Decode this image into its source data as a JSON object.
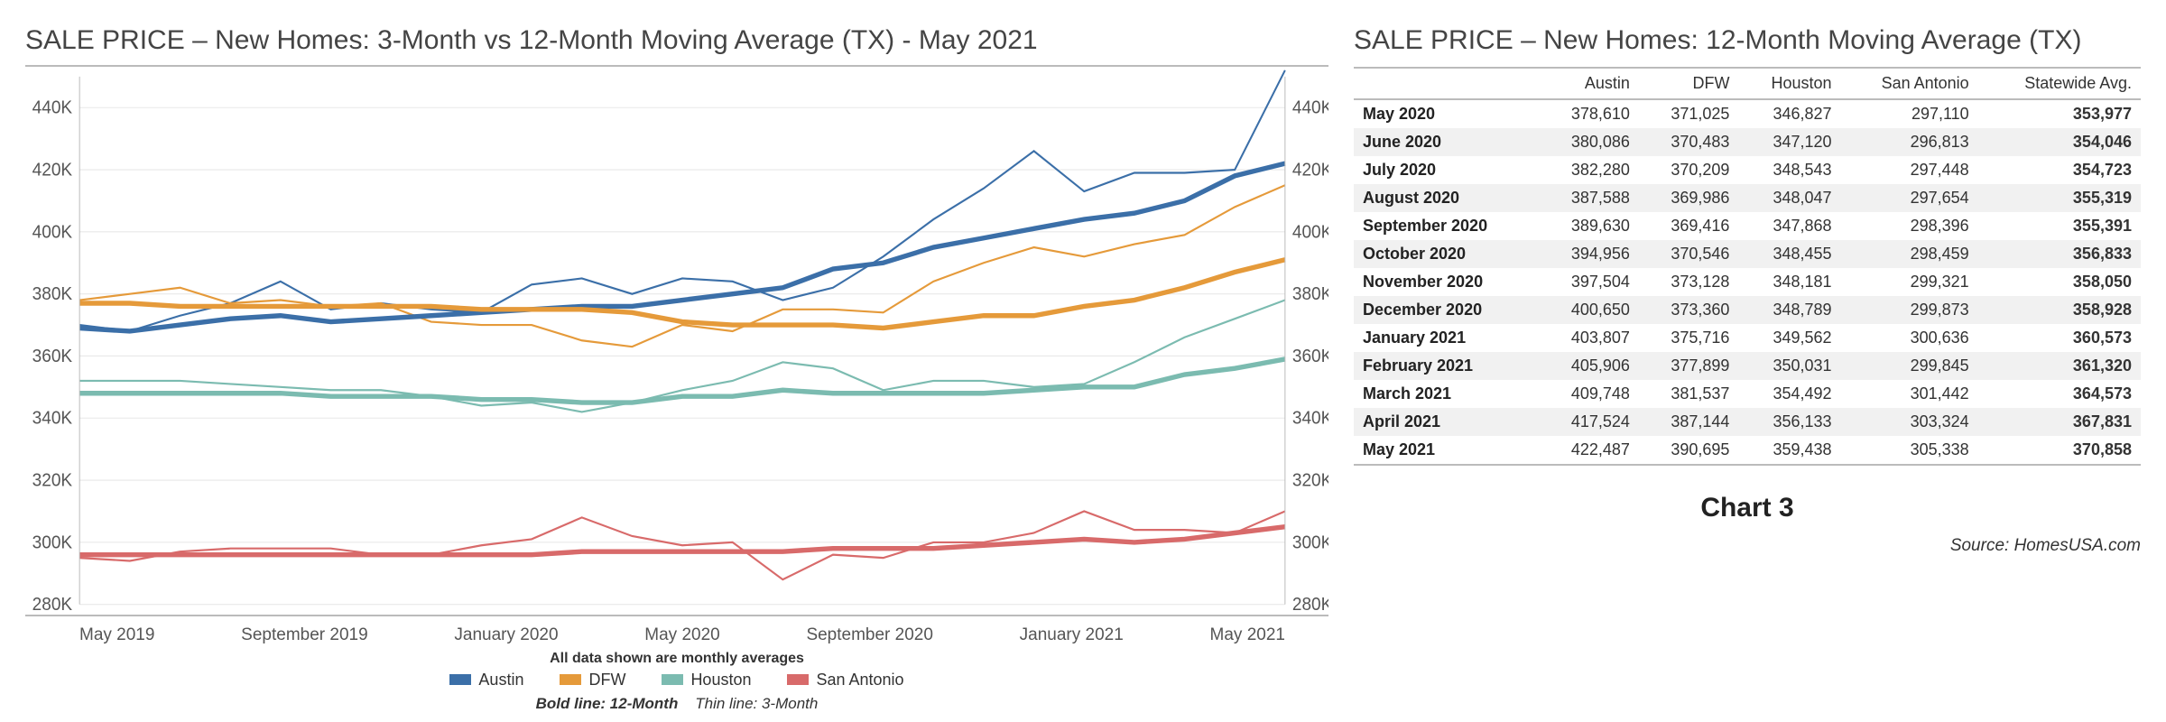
{
  "left_title_main": "SALE PRICE – New Homes: 3-Month vs 12-Month Moving Average (TX)",
  "left_title_suffix": " - May 2021",
  "right_title": "SALE PRICE – New Homes: 12-Month Moving Average (TX)",
  "chart_label": "Chart 3",
  "source": "Source: HomesUSA.com",
  "legend": {
    "caption": "All data shown are monthly averages",
    "items": [
      {
        "label": "Austin",
        "color": "#3b6fa8"
      },
      {
        "label": "DFW",
        "color": "#e59a3a"
      },
      {
        "label": "Houston",
        "color": "#7bbbb0"
      },
      {
        "label": "San Antonio",
        "color": "#d86a6a"
      }
    ],
    "note_bold": "Bold line: 12-Month",
    "note_thin": "Thin line: 3-Month"
  },
  "chart": {
    "type": "line",
    "background_color": "#ffffff",
    "grid_color": "#e8e8e8",
    "axis_label_color": "#555555",
    "axis_label_fontsize": 19,
    "ylim": [
      280,
      450
    ],
    "y_ticks": [
      280,
      300,
      320,
      340,
      360,
      380,
      400,
      420,
      440
    ],
    "y_tick_suffix": "K",
    "x_labels": [
      "May 2019",
      "September 2019",
      "January 2020",
      "May 2020",
      "September 2020",
      "January 2021",
      "May 2021"
    ],
    "x_count": 25,
    "series_colors": {
      "Austin": "#3b6fa8",
      "DFW": "#e59a3a",
      "Houston": "#7bbbb0",
      "San Antonio": "#d86a6a"
    },
    "bold_line_width": 5,
    "thin_line_width": 2,
    "series_12mo": {
      "Austin": [
        369,
        368,
        370,
        372,
        373,
        371,
        372,
        373,
        374,
        375,
        376,
        376,
        378,
        380,
        382,
        388,
        390,
        395,
        398,
        401,
        404,
        406,
        410,
        418,
        422
      ],
      "DFW": [
        377,
        377,
        376,
        376,
        376,
        376,
        376,
        376,
        375,
        375,
        375,
        374,
        371,
        370,
        370,
        370,
        369,
        371,
        373,
        373,
        376,
        378,
        382,
        387,
        391
      ],
      "Houston": [
        348,
        348,
        348,
        348,
        348,
        347,
        347,
        347,
        346,
        346,
        345,
        345,
        347,
        347,
        349,
        348,
        348,
        348,
        348,
        349,
        350,
        350,
        354,
        356,
        359
      ],
      "San Antonio": [
        296,
        296,
        296,
        296,
        296,
        296,
        296,
        296,
        296,
        296,
        297,
        297,
        297,
        297,
        297,
        298,
        298,
        298,
        299,
        300,
        301,
        300,
        301,
        303,
        305
      ]
    },
    "series_3mo": {
      "Austin": [
        370,
        368,
        373,
        377,
        384,
        375,
        377,
        375,
        374,
        383,
        385,
        380,
        385,
        384,
        378,
        382,
        392,
        404,
        414,
        426,
        413,
        419,
        419,
        420,
        452
      ],
      "DFW": [
        378,
        380,
        382,
        377,
        378,
        376,
        377,
        371,
        370,
        370,
        365,
        363,
        370,
        368,
        375,
        375,
        374,
        384,
        390,
        395,
        392,
        396,
        399,
        408,
        415
      ],
      "Houston": [
        352,
        352,
        352,
        351,
        350,
        349,
        349,
        347,
        344,
        345,
        342,
        345,
        349,
        352,
        358,
        356,
        349,
        352,
        352,
        350,
        351,
        358,
        366,
        372,
        378
      ],
      "San Antonio": [
        295,
        294,
        297,
        298,
        298,
        298,
        296,
        296,
        299,
        301,
        308,
        302,
        299,
        300,
        288,
        296,
        295,
        300,
        300,
        303,
        310,
        304,
        304,
        303,
        310
      ]
    }
  },
  "table": {
    "columns": [
      "",
      "Austin",
      "DFW",
      "Houston",
      "San Antonio",
      "Statewide Avg."
    ],
    "rows": [
      [
        "May 2020",
        "378,610",
        "371,025",
        "346,827",
        "297,110",
        "353,977"
      ],
      [
        "June 2020",
        "380,086",
        "370,483",
        "347,120",
        "296,813",
        "354,046"
      ],
      [
        "July 2020",
        "382,280",
        "370,209",
        "348,543",
        "297,448",
        "354,723"
      ],
      [
        "August 2020",
        "387,588",
        "369,986",
        "348,047",
        "297,654",
        "355,319"
      ],
      [
        "September 2020",
        "389,630",
        "369,416",
        "347,868",
        "298,396",
        "355,391"
      ],
      [
        "October 2020",
        "394,956",
        "370,546",
        "348,455",
        "298,459",
        "356,833"
      ],
      [
        "November 2020",
        "397,504",
        "373,128",
        "348,181",
        "299,321",
        "358,050"
      ],
      [
        "December 2020",
        "400,650",
        "373,360",
        "348,789",
        "299,873",
        "358,928"
      ],
      [
        "January 2021",
        "403,807",
        "375,716",
        "349,562",
        "300,636",
        "360,573"
      ],
      [
        "February 2021",
        "405,906",
        "377,899",
        "350,031",
        "299,845",
        "361,320"
      ],
      [
        "March 2021",
        "409,748",
        "381,537",
        "354,492",
        "301,442",
        "364,573"
      ],
      [
        "April 2021",
        "417,524",
        "387,144",
        "356,133",
        "303,324",
        "367,831"
      ],
      [
        "May 2021",
        "422,487",
        "390,695",
        "359,438",
        "305,338",
        "370,858"
      ]
    ],
    "stripe_color": "#f1f1f1",
    "border_color": "#bbbbbb"
  }
}
